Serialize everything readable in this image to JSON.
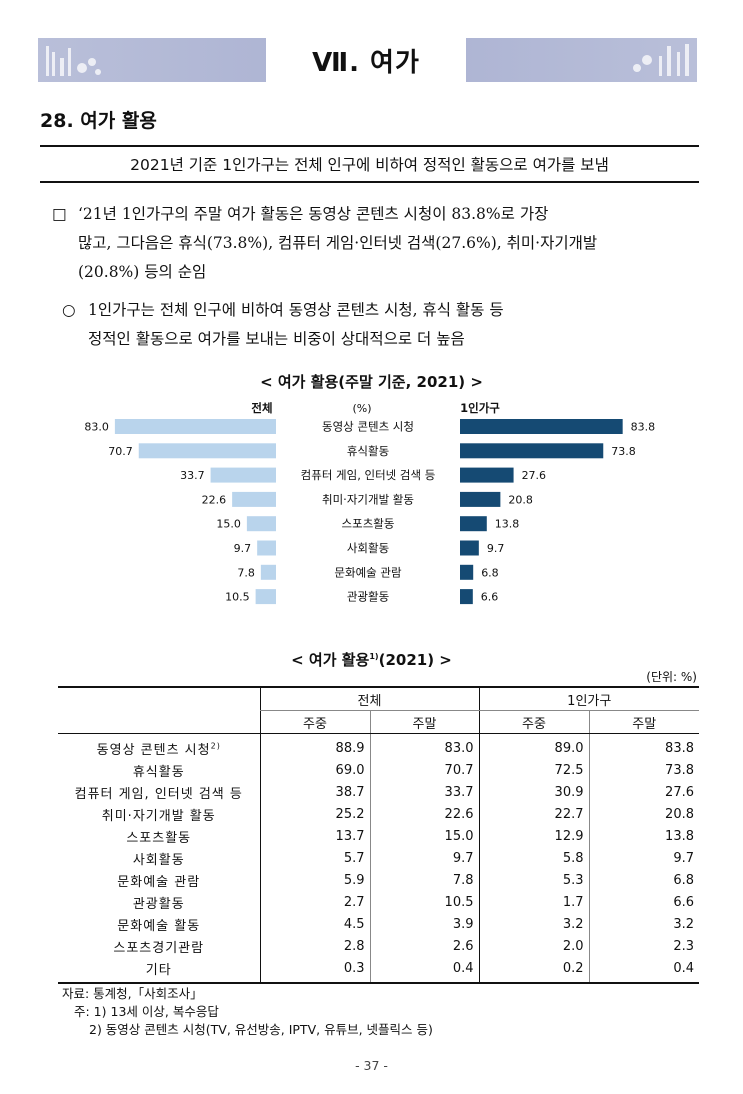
{
  "header": {
    "chapter_title": "Ⅶ. 여가"
  },
  "section_title": "28. 여가 활용",
  "summary": "2021년 기준 1인가구는 전체 인구에 비하여 정적인 활동으로 여가를 보냄",
  "paragraphs": {
    "p1_mark": "□",
    "p1_line1": "‘21년 1인가구의 주말 여가 활동은 동영상 콘텐츠 시청이 83.8%로 가장",
    "p1_line2": "많고, 그다음은 휴식(73.8%), 컴퓨터 게임·인터넷 검색(27.6%), 취미·자기개발",
    "p1_line3": "(20.8%) 등의 순임",
    "p2_mark": "○",
    "p2_line1": "1인가구는 전체 인구에 비하여 동영상 콘텐츠 시청, 휴식 활동 등",
    "p2_line2": "정적인 활동으로 여가를 보내는 비중이 상대적으로 더 높음"
  },
  "chart_data": {
    "type": "bar",
    "title": "< 여가 활용(주말 기준, 2021) >",
    "left_label": "전체",
    "center_label": "(%)",
    "right_label": "1인가구",
    "categories": [
      "동영상 콘텐츠 시청",
      "휴식활동",
      "컴퓨터 게임, 인터넷 검색 등",
      "취미·자기개발 활동",
      "스포츠활동",
      "사회활동",
      "문화예술 관람",
      "관광활동"
    ],
    "series": [
      {
        "name": "전체",
        "values": [
          83.0,
          70.7,
          33.7,
          22.6,
          15.0,
          9.7,
          7.8,
          10.5
        ],
        "color": "#b9d4ec"
      },
      {
        "name": "1인가구",
        "values": [
          83.8,
          73.8,
          27.6,
          20.8,
          13.8,
          9.7,
          6.8,
          6.6
        ],
        "color": "#154a73"
      }
    ],
    "value_labels_left": [
      "83.0",
      "70.7",
      "33.7",
      "22.6",
      "15.0",
      "9.7",
      "7.8",
      "10.5"
    ],
    "value_labels_right": [
      "83.8",
      "73.8",
      "27.6",
      "20.8",
      "13.8",
      "9.7",
      "6.8",
      "6.6"
    ]
  },
  "table": {
    "title": "< 여가 활용",
    "title_sup": "1)",
    "title_suffix": "(2021) >",
    "unit": "(단위: %)",
    "group_all": "전체",
    "group_single": "1인가구",
    "sub_weekday": "주중",
    "sub_weekend": "주말",
    "rows": [
      {
        "label": "동영상 콘텐츠 시청",
        "sup": "2)",
        "v": [
          "88.9",
          "83.0",
          "89.0",
          "83.8"
        ]
      },
      {
        "label": "휴식활동",
        "sup": "",
        "v": [
          "69.0",
          "70.7",
          "72.5",
          "73.8"
        ]
      },
      {
        "label": "컴퓨터 게임, 인터넷 검색 등",
        "sup": "",
        "v": [
          "38.7",
          "33.7",
          "30.9",
          "27.6"
        ]
      },
      {
        "label": "취미·자기개발 활동",
        "sup": "",
        "v": [
          "25.2",
          "22.6",
          "22.7",
          "20.8"
        ]
      },
      {
        "label": "스포츠활동",
        "sup": "",
        "v": [
          "13.7",
          "15.0",
          "12.9",
          "13.8"
        ]
      },
      {
        "label": "사회활동",
        "sup": "",
        "v": [
          "5.7",
          "9.7",
          "5.8",
          "9.7"
        ]
      },
      {
        "label": "문화예술 관람",
        "sup": "",
        "v": [
          "5.9",
          "7.8",
          "5.3",
          "6.8"
        ]
      },
      {
        "label": "관광활동",
        "sup": "",
        "v": [
          "2.7",
          "10.5",
          "1.7",
          "6.6"
        ]
      },
      {
        "label": "문화예술 활동",
        "sup": "",
        "v": [
          "4.5",
          "3.9",
          "3.2",
          "3.2"
        ]
      },
      {
        "label": "스포츠경기관람",
        "sup": "",
        "v": [
          "2.8",
          "2.6",
          "2.0",
          "2.3"
        ]
      },
      {
        "label": "기타",
        "sup": "",
        "v": [
          "0.3",
          "0.4",
          "0.2",
          "0.4"
        ]
      }
    ]
  },
  "notes": {
    "source": "자료: 통계청,「사회조사」",
    "note1": "주: 1) 13세 이상, 복수응답",
    "note2": "2) 동영상 콘텐츠 시청(TV, 유선방송, IPTV, 유튜브, 넷플릭스 등)"
  },
  "page_number": "- 37 -"
}
